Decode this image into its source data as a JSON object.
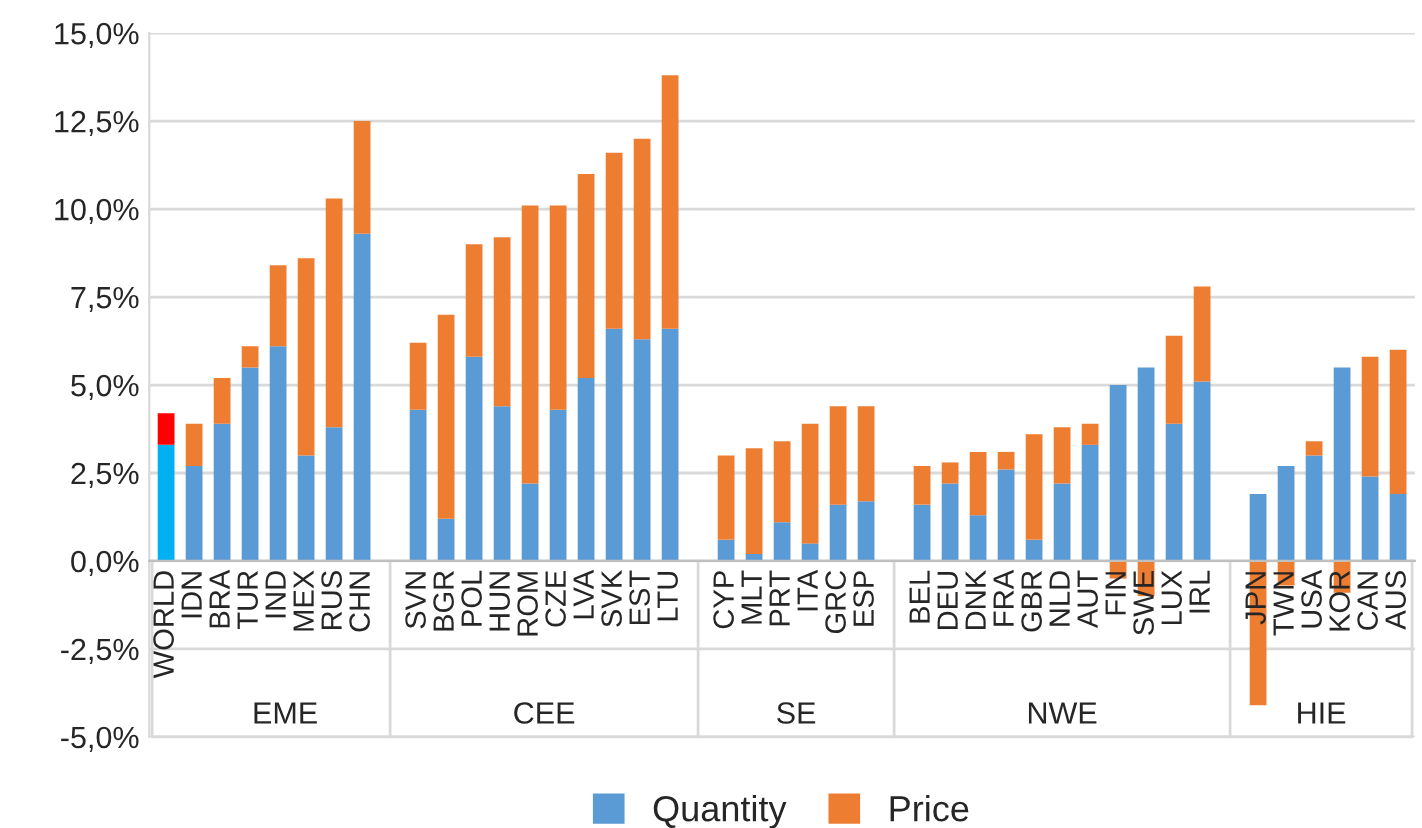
{
  "chart_data": {
    "type": "bar",
    "stacked": true,
    "categories": [
      "WORLD",
      "IDN",
      "BRA",
      "TUR",
      "IND",
      "MEX",
      "RUS",
      "CHN",
      null,
      "SVN",
      "BGR",
      "POL",
      "HUN",
      "ROM",
      "CZE",
      "LVA",
      "SVK",
      "EST",
      "LTU",
      null,
      "CYP",
      "MLT",
      "PRT",
      "ITA",
      "GRC",
      "ESP",
      null,
      "BEL",
      "DEU",
      "DNK",
      "FRA",
      "GBR",
      "NLD",
      "AUT",
      "FIN",
      "SWE",
      "LUX",
      "IRL",
      null,
      "JPN",
      "TWN",
      "USA",
      "KOR",
      "CAN",
      "AUS"
    ],
    "series": [
      {
        "name": "Quantity",
        "color": "#5b9bd5",
        "colors": [
          "#00b0f0",
          "#5b9bd5",
          "#5b9bd5",
          "#5b9bd5",
          "#5b9bd5",
          "#5b9bd5",
          "#5b9bd5",
          "#5b9bd5",
          null,
          "#5b9bd5",
          "#5b9bd5",
          "#5b9bd5",
          "#5b9bd5",
          "#5b9bd5",
          "#5b9bd5",
          "#5b9bd5",
          "#5b9bd5",
          "#5b9bd5",
          "#5b9bd5",
          null,
          "#5b9bd5",
          "#5b9bd5",
          "#5b9bd5",
          "#5b9bd5",
          "#5b9bd5",
          "#5b9bd5",
          null,
          "#5b9bd5",
          "#5b9bd5",
          "#5b9bd5",
          "#5b9bd5",
          "#5b9bd5",
          "#5b9bd5",
          "#5b9bd5",
          "#5b9bd5",
          "#5b9bd5",
          "#5b9bd5",
          "#5b9bd5",
          null,
          "#5b9bd5",
          "#5b9bd5",
          "#5b9bd5",
          "#5b9bd5",
          "#5b9bd5",
          "#5b9bd5"
        ],
        "values": [
          3.3,
          2.7,
          3.9,
          5.5,
          6.1,
          3.0,
          3.8,
          9.3,
          null,
          4.3,
          1.2,
          5.8,
          4.4,
          2.2,
          4.3,
          5.2,
          6.6,
          6.3,
          6.6,
          null,
          0.6,
          0.2,
          1.1,
          0.5,
          1.6,
          1.7,
          null,
          1.6,
          2.2,
          1.3,
          2.6,
          0.6,
          2.2,
          3.3,
          5.0,
          5.5,
          3.9,
          5.1,
          null,
          1.9,
          2.7,
          3.0,
          5.5,
          2.4,
          1.9
        ]
      },
      {
        "name": "Price",
        "color": "#ed7d31",
        "colors": [
          "#ff0000",
          "#ed7d31",
          "#ed7d31",
          "#ed7d31",
          "#ed7d31",
          "#ed7d31",
          "#ed7d31",
          "#ed7d31",
          null,
          "#ed7d31",
          "#ed7d31",
          "#ed7d31",
          "#ed7d31",
          "#ed7d31",
          "#ed7d31",
          "#ed7d31",
          "#ed7d31",
          "#ed7d31",
          "#ed7d31",
          null,
          "#ed7d31",
          "#ed7d31",
          "#ed7d31",
          "#ed7d31",
          "#ed7d31",
          "#ed7d31",
          null,
          "#ed7d31",
          "#ed7d31",
          "#ed7d31",
          "#ed7d31",
          "#ed7d31",
          "#ed7d31",
          "#ed7d31",
          "#ed7d31",
          "#ed7d31",
          "#ed7d31",
          "#ed7d31",
          null,
          "#ed7d31",
          "#ed7d31",
          "#ed7d31",
          "#ed7d31",
          "#ed7d31",
          "#ed7d31"
        ],
        "values": [
          0.9,
          1.2,
          1.3,
          0.6,
          2.3,
          5.6,
          6.5,
          3.2,
          null,
          1.9,
          5.8,
          3.2,
          4.8,
          7.9,
          5.8,
          5.8,
          5.0,
          5.7,
          7.2,
          null,
          2.4,
          3.0,
          2.3,
          3.4,
          2.8,
          2.7,
          null,
          1.1,
          0.6,
          1.8,
          0.5,
          3.0,
          1.6,
          0.6,
          -0.5,
          -1.0,
          2.5,
          2.7,
          null,
          -4.1,
          -0.7,
          0.4,
          -0.9,
          3.4,
          4.1
        ]
      }
    ],
    "ylim": [
      -5,
      15
    ],
    "yticks": [
      {
        "value": -5,
        "label": "-5,0%"
      },
      {
        "value": -2.5,
        "label": "-2,5%"
      },
      {
        "value": 0,
        "label": "0,0%"
      },
      {
        "value": 2.5,
        "label": "2,5%"
      },
      {
        "value": 5,
        "label": "5,0%"
      },
      {
        "value": 7.5,
        "label": "7,5%"
      },
      {
        "value": 10,
        "label": "10,0%"
      },
      {
        "value": 12.5,
        "label": "12,5%"
      },
      {
        "value": 15,
        "label": "15,0%"
      }
    ],
    "grid": "y",
    "legend": "bottom",
    "annotations": [
      "EME",
      "CEE",
      "SE",
      "NWE",
      "HIE"
    ]
  }
}
